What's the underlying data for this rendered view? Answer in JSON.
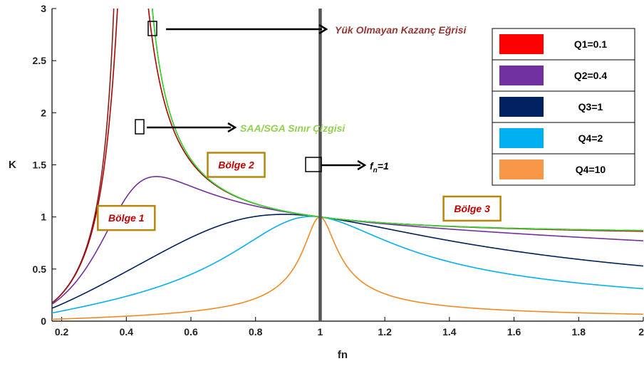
{
  "chart_data": {
    "type": "line",
    "title": "",
    "xlabel": "fn",
    "ylabel": "K",
    "xlim": [
      0.17,
      2.0
    ],
    "ylim": [
      0,
      3
    ],
    "x_ticks": [
      "0.2",
      "0.4",
      "0.6",
      "0.8",
      "1",
      "1.2",
      "1.4",
      "1.6",
      "1.8",
      "2"
    ],
    "y_ticks": [
      "0",
      "0.5",
      "1",
      "1.5",
      "2",
      "2.5",
      "3"
    ],
    "grid": false,
    "legend_position": "top-right",
    "gain_model": {
      "Ln": 5
    },
    "series": [
      {
        "name": "Q1=0.1",
        "Q": 0.1,
        "color": "#ff0000",
        "curve_color": "#b00000"
      },
      {
        "name": "Q2=0.4",
        "Q": 0.4,
        "color": "#7030a0",
        "curve_color": "#7030a0"
      },
      {
        "name": "Q3=1",
        "Q": 1,
        "color": "#002060",
        "curve_color": "#002060"
      },
      {
        "name": "Q4=2",
        "Q": 2,
        "color": "#00b0f0",
        "curve_color": "#00b0f0"
      },
      {
        "name": "Q4=10",
        "Q": 10,
        "color": "#f79646",
        "curve_color": "#f08a24"
      }
    ],
    "no_load_curve": {
      "color": "#8b1a1a"
    },
    "boundary_curve": {
      "color": "#33dd33"
    },
    "resonance_line": {
      "x": 1,
      "color": "#555555"
    },
    "annotations": {
      "no_load": "Yük Olmayan Kazanç Eğrisi",
      "boundary": "SAA/SGA Sınır Çizgisi",
      "fn_base": "f",
      "fn_sub": "n",
      "fn_rest": "=1"
    },
    "annotation_colors": {
      "no_load": "#953735",
      "boundary": "#92d050",
      "fn": "#000000"
    },
    "regions": [
      {
        "label": "Bölge 1",
        "x": 0.4,
        "y": 0.99
      },
      {
        "label": "Bölge 2",
        "x": 0.74,
        "y": 1.5
      },
      {
        "label": "Bölge 3",
        "x": 1.47,
        "y": 1.08
      }
    ],
    "region_box_color": "#b8860b"
  }
}
